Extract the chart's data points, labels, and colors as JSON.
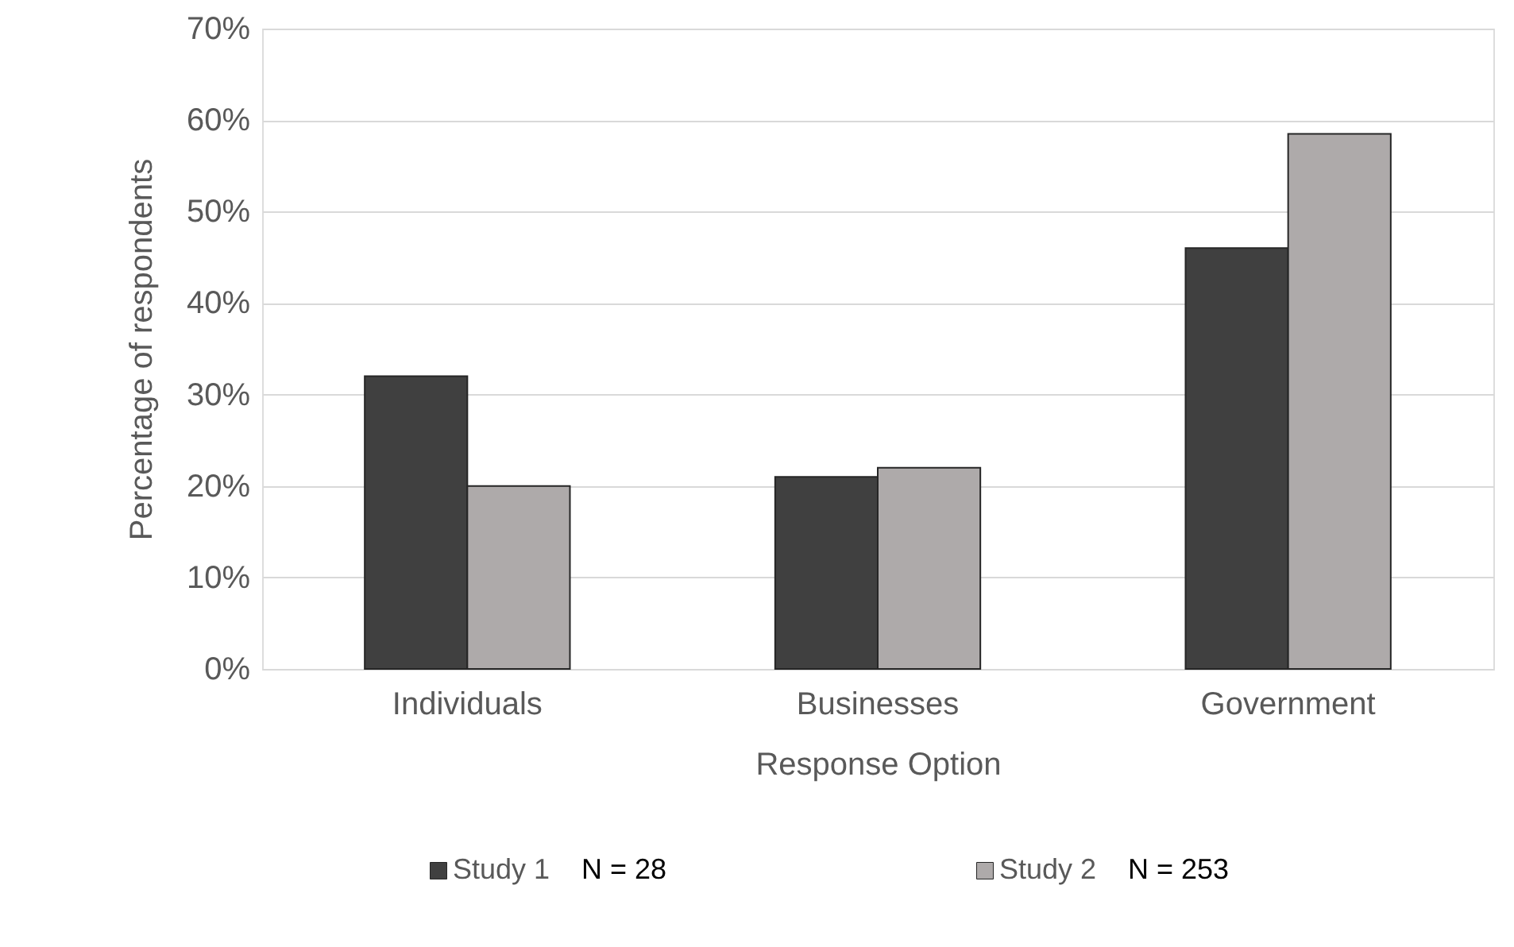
{
  "chart_data": {
    "type": "bar",
    "xlabel": "Response Option",
    "ylabel": "Percentage of respondents",
    "categories": [
      "Individuals",
      "Businesses",
      "Government"
    ],
    "series": [
      {
        "name": "Study 1",
        "color": "#404040",
        "values": [
          32,
          21,
          46
        ]
      },
      {
        "name": "Study 2",
        "color": "#aeaaaa",
        "values": [
          20,
          22,
          58.5
        ]
      }
    ],
    "ylim": [
      0,
      70
    ],
    "yticks": [
      {
        "value": 0,
        "label": "0%"
      },
      {
        "value": 10,
        "label": "10%"
      },
      {
        "value": 20,
        "label": "20%"
      },
      {
        "value": 30,
        "label": "30%"
      },
      {
        "value": 40,
        "label": "40%"
      },
      {
        "value": 50,
        "label": "50%"
      },
      {
        "value": 60,
        "label": "60%"
      },
      {
        "value": 70,
        "label": "70%"
      }
    ],
    "grid": "y",
    "legend": "bottom",
    "annotations": [
      "N = 28",
      "N = 253"
    ]
  }
}
